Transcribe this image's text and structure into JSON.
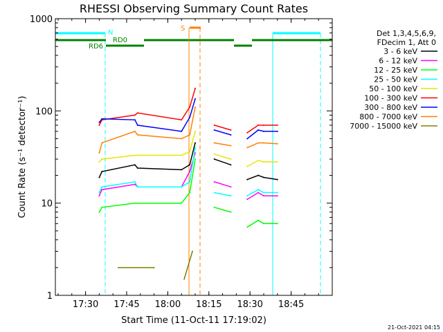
{
  "chart_data": {
    "type": "line",
    "title": "RHESSI Observing Summary Count Rates",
    "xlabel": "Start Time (11-Oct-11 17:19:02)",
    "ylabel": "Count Rate (s⁻¹ detector⁻¹)",
    "yscale": "log",
    "ylim": [
      1,
      1000
    ],
    "xlim": [
      "17:19",
      "19:00"
    ],
    "x_ticks": [
      "17:30",
      "17:45",
      "18:00",
      "18:15",
      "18:30",
      "18:45"
    ],
    "y_ticks": [
      "1",
      "10",
      "100",
      "1000"
    ],
    "grid": false,
    "legend_position": "right",
    "legend_header": [
      "Det 1,3,4,5,6,9,",
      "FDecim 1, Att 0"
    ],
    "footer": "21-Oct-2021 04:15",
    "series": [
      {
        "name": "3 - 6 keV",
        "color": "#000000",
        "x": [
          "17:32",
          "17:35",
          "17:36",
          "17:48",
          "17:49",
          "18:05",
          "18:08",
          "18:10",
          "18:12",
          "18:14",
          "18:17",
          "18:23",
          "18:24",
          "18:27",
          "18:29",
          "18:33",
          "18:35",
          "18:40"
        ],
        "y": [
          null,
          19,
          22,
          26,
          24,
          23,
          26,
          45,
          null,
          null,
          30,
          26,
          null,
          null,
          18,
          20,
          19,
          18
        ]
      },
      {
        "name": "6 - 12 keV",
        "color": "#ff00ff",
        "x": [
          "17:32",
          "17:35",
          "17:36",
          "17:48",
          "17:49",
          "18:05",
          "18:08",
          "18:10",
          "18:12",
          "18:14",
          "18:17",
          "18:23",
          "18:24",
          "18:27",
          "18:29",
          "18:33",
          "18:35",
          "18:40"
        ],
        "y": [
          null,
          12,
          14,
          16,
          15,
          15,
          22,
          35,
          null,
          null,
          17,
          15,
          null,
          null,
          11,
          13,
          12,
          12
        ]
      },
      {
        "name": "12 - 25 keV",
        "color": "#00ff00",
        "x": [
          "17:32",
          "17:35",
          "17:36",
          "17:48",
          "17:49",
          "18:05",
          "18:08",
          "18:10",
          "18:12",
          "18:14",
          "18:17",
          "18:23",
          "18:24",
          "18:27",
          "18:29",
          "18:33",
          "18:35",
          "18:40"
        ],
        "y": [
          null,
          8,
          9,
          10,
          10,
          10,
          13,
          30,
          null,
          null,
          9,
          8,
          null,
          null,
          5.5,
          6.5,
          6,
          6
        ]
      },
      {
        "name": "25 - 50 keV",
        "color": "#00ffff",
        "x": [
          "17:32",
          "17:35",
          "17:36",
          "17:48",
          "17:49",
          "18:05",
          "18:08",
          "18:10",
          "18:12",
          "18:14",
          "18:17",
          "18:23",
          "18:24",
          "18:27",
          "18:29",
          "18:33",
          "18:35",
          "18:40"
        ],
        "y": [
          null,
          13,
          15,
          17,
          15,
          15,
          17,
          40,
          null,
          null,
          13,
          12,
          null,
          null,
          12,
          14,
          13,
          13
        ]
      },
      {
        "name": "50 - 100 keV",
        "color": "#e6e600",
        "x": [
          "17:32",
          "17:35",
          "17:36",
          "17:48",
          "17:49",
          "18:05",
          "18:08",
          "18:10",
          "18:12",
          "18:14",
          "18:17",
          "18:23",
          "18:24",
          "18:27",
          "18:29",
          "18:33",
          "18:35",
          "18:40"
        ],
        "y": [
          null,
          28,
          30,
          33,
          33,
          33,
          36,
          60,
          null,
          null,
          34,
          30,
          null,
          null,
          25,
          29,
          28,
          28
        ]
      },
      {
        "name": "100 - 300 keV",
        "color": "#ff0000",
        "x": [
          "17:32",
          "17:35",
          "17:36",
          "17:48",
          "17:49",
          "18:05",
          "18:08",
          "18:10",
          "18:12",
          "18:14",
          "18:17",
          "18:23",
          "18:24",
          "18:27",
          "18:29",
          "18:33",
          "18:35",
          "18:40"
        ],
        "y": [
          null,
          70,
          80,
          90,
          95,
          80,
          110,
          175,
          null,
          null,
          70,
          62,
          null,
          null,
          58,
          70,
          70,
          70
        ]
      },
      {
        "name": "300 - 800 keV",
        "color": "#0000ff",
        "x": [
          "17:32",
          "17:35",
          "17:36",
          "17:48",
          "17:49",
          "18:05",
          "18:08",
          "18:10",
          "18:12",
          "18:14",
          "18:17",
          "18:23",
          "18:24",
          "18:27",
          "18:29",
          "18:33",
          "18:35",
          "18:40"
        ],
        "y": [
          null,
          75,
          82,
          80,
          70,
          60,
          85,
          135,
          null,
          null,
          62,
          55,
          null,
          null,
          50,
          62,
          60,
          60
        ]
      },
      {
        "name": "800 - 7000 keV",
        "color": "#ff8000",
        "x": [
          "17:32",
          "17:35",
          "17:36",
          "17:48",
          "17:49",
          "18:05",
          "18:08",
          "18:10",
          "18:12",
          "18:14",
          "18:17",
          "18:23",
          "18:24",
          "18:27",
          "18:29",
          "18:33",
          "18:35",
          "18:40"
        ],
        "y": [
          null,
          35,
          45,
          60,
          55,
          50,
          55,
          110,
          null,
          null,
          45,
          42,
          null,
          null,
          40,
          45,
          45,
          44
        ]
      },
      {
        "name": "7000 - 15000 keV",
        "color": "#808000",
        "x": [
          "17:32",
          "17:35",
          "17:42",
          "17:55",
          "17:56",
          "18:06",
          "18:09"
        ],
        "y": [
          null,
          null,
          2,
          2,
          null,
          1.5,
          3
        ]
      }
    ],
    "annotations": [
      {
        "label": "N",
        "color": "#00ffff"
      },
      {
        "label": "RD0",
        "color": "#008000"
      },
      {
        "label": "RD6",
        "color": "#008000"
      },
      {
        "label": "S",
        "color": "#ff8000"
      }
    ]
  }
}
